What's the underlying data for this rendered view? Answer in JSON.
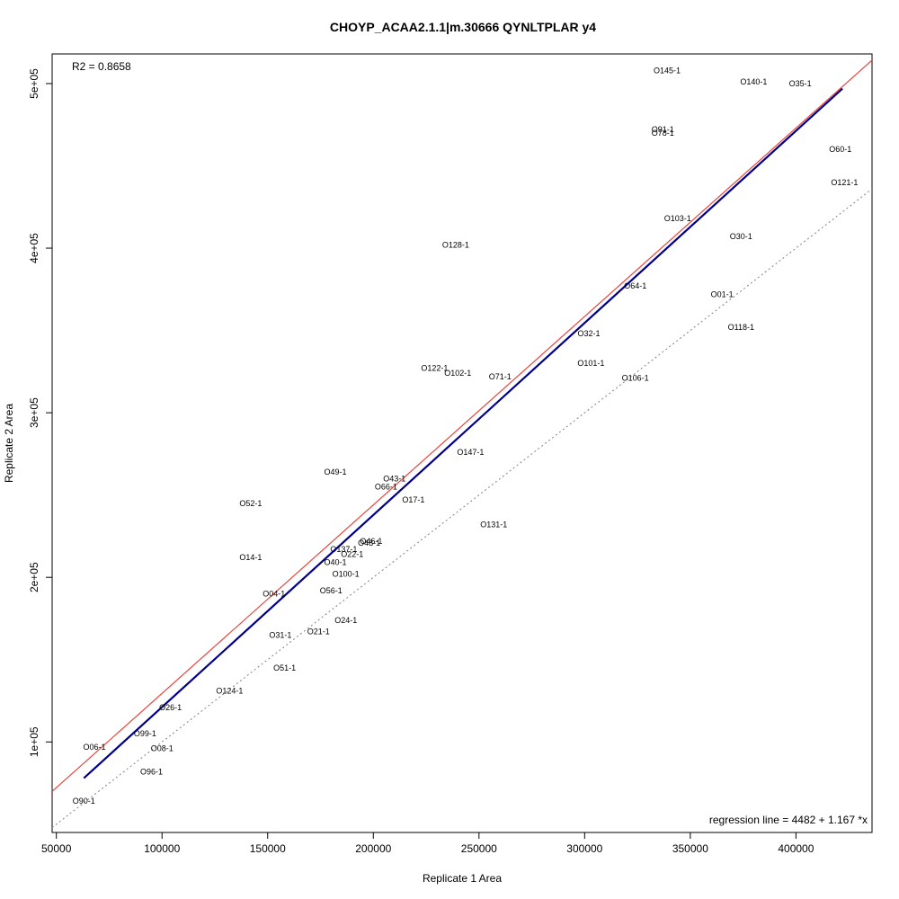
{
  "chart_data": {
    "type": "scatter",
    "title": "CHOYP_ACAA2.1.1|m.30666 QYNLTPLAR y4",
    "xlabel": "Replicate 1 Area",
    "ylabel": "Replicate 2 Area",
    "xlim": [
      48000,
      436000
    ],
    "ylim": [
      45000,
      518000
    ],
    "x_ticks": [
      50000,
      100000,
      150000,
      200000,
      250000,
      300000,
      350000,
      400000
    ],
    "x_tick_labels": [
      "50000",
      "100000",
      "150000",
      "200000",
      "250000",
      "300000",
      "350000",
      "400000"
    ],
    "y_ticks": [
      100000,
      200000,
      300000,
      400000,
      500000
    ],
    "y_tick_labels": [
      "1e+05",
      "2e+05",
      "3e+05",
      "4e+05",
      "5e+05"
    ],
    "grid": false,
    "r2_label": "R2 = 0.8658",
    "regression_label": "regression line = 4482 + 1.167 *x",
    "regression": {
      "intercept": 4482,
      "slope": 1.167,
      "x_range": [
        63000,
        422000
      ],
      "color": "#00008b"
    },
    "identity_line": {
      "intercept": 0,
      "slope": 1,
      "color": "#808080",
      "style": "dotted"
    },
    "red_line": {
      "intercept": 15000,
      "slope": 1.145,
      "color": "#e8453c"
    },
    "points": [
      {
        "label": "O145-1",
        "x": 339000,
        "y": 508000
      },
      {
        "label": "O140-1",
        "x": 380000,
        "y": 501000
      },
      {
        "label": "O35-1",
        "x": 402000,
        "y": 500000
      },
      {
        "label": "O91-1",
        "x": 337000,
        "y": 472000
      },
      {
        "label": "O78-1",
        "x": 337000,
        "y": 470000
      },
      {
        "label": "O60-1",
        "x": 421000,
        "y": 460000
      },
      {
        "label": "O121-1",
        "x": 423000,
        "y": 440000
      },
      {
        "label": "O103-1",
        "x": 344000,
        "y": 418000
      },
      {
        "label": "O30-1",
        "x": 374000,
        "y": 407000
      },
      {
        "label": "O128-1",
        "x": 239000,
        "y": 402000
      },
      {
        "label": "O64-1",
        "x": 324000,
        "y": 377000
      },
      {
        "label": "O01-1",
        "x": 365000,
        "y": 372000
      },
      {
        "label": "O118-1",
        "x": 374000,
        "y": 352000
      },
      {
        "label": "O32-1",
        "x": 302000,
        "y": 348000
      },
      {
        "label": "O101-1",
        "x": 303000,
        "y": 330000
      },
      {
        "label": "O122-1",
        "x": 229000,
        "y": 327000
      },
      {
        "label": "O102-1",
        "x": 240000,
        "y": 324000
      },
      {
        "label": "O71-1",
        "x": 260000,
        "y": 322000
      },
      {
        "label": "O106-1",
        "x": 324000,
        "y": 321000
      },
      {
        "label": "O147-1",
        "x": 246000,
        "y": 276000
      },
      {
        "label": "O49-1",
        "x": 182000,
        "y": 264000
      },
      {
        "label": "O43-1",
        "x": 210000,
        "y": 260000
      },
      {
        "label": "O66-1",
        "x": 206000,
        "y": 255000
      },
      {
        "label": "O17-1",
        "x": 219000,
        "y": 247000
      },
      {
        "label": "O52-1",
        "x": 142000,
        "y": 245000
      },
      {
        "label": "O131-1",
        "x": 257000,
        "y": 232000
      },
      {
        "label": "O46-1",
        "x": 199000,
        "y": 222000
      },
      {
        "label": "O48-1",
        "x": 198000,
        "y": 221000
      },
      {
        "label": "O137-1",
        "x": 186000,
        "y": 217000
      },
      {
        "label": "O22-1",
        "x": 190000,
        "y": 214000
      },
      {
        "label": "O14-1",
        "x": 142000,
        "y": 212000
      },
      {
        "label": "O40-1",
        "x": 182000,
        "y": 209000
      },
      {
        "label": "O100-1",
        "x": 187000,
        "y": 202000
      },
      {
        "label": "O56-1",
        "x": 180000,
        "y": 192000
      },
      {
        "label": "O04-1",
        "x": 153000,
        "y": 190000
      },
      {
        "label": "O24-1",
        "x": 187000,
        "y": 174000
      },
      {
        "label": "O21-1",
        "x": 174000,
        "y": 167000
      },
      {
        "label": "O31-1",
        "x": 156000,
        "y": 165000
      },
      {
        "label": "O51-1",
        "x": 158000,
        "y": 145000
      },
      {
        "label": "O124-1",
        "x": 132000,
        "y": 131000
      },
      {
        "label": "O26-1",
        "x": 104000,
        "y": 121000
      },
      {
        "label": "O99-1",
        "x": 92000,
        "y": 105000
      },
      {
        "label": "O06-1",
        "x": 68000,
        "y": 97000
      },
      {
        "label": "O08-1",
        "x": 100000,
        "y": 96000
      },
      {
        "label": "O96-1",
        "x": 95000,
        "y": 82000
      },
      {
        "label": "O90-1",
        "x": 63000,
        "y": 64000
      }
    ]
  }
}
